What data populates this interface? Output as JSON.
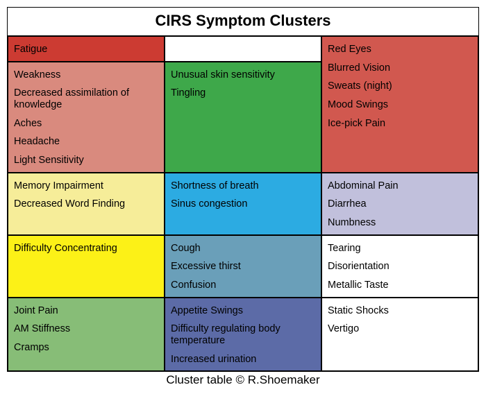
{
  "title": "CIRS Symptom Clusters",
  "footer": "Cluster table © R.Shoemaker",
  "layout": {
    "columns": 3,
    "border_color": "#000000",
    "title_fontsize": 22,
    "cell_fontsize": 14.5,
    "footer_fontsize": 17
  },
  "cells": [
    {
      "id": "c-fatigue",
      "bg": "#cc3b32",
      "row": 1,
      "col": 1,
      "rowspan": 1,
      "symptoms": [
        "Fatigue"
      ]
    },
    {
      "id": "c-blank",
      "bg": "#ffffff",
      "row": 1,
      "col": 2,
      "rowspan": 1,
      "symptoms": []
    },
    {
      "id": "c-redEyes",
      "bg": "#d1584f",
      "row": 1,
      "col": 3,
      "rowspan": 2,
      "symptoms": [
        "Red Eyes",
        "Blurred Vision",
        "Sweats (night)",
        "Mood Swings",
        "Ice-pick Pain"
      ]
    },
    {
      "id": "c-weakness",
      "bg": "#d98a7e",
      "row": 2,
      "col": 1,
      "rowspan": 1,
      "symptoms": [
        "Weakness",
        "Decreased assimilation of knowledge",
        "Aches",
        "Headache",
        "Light Sensitivity"
      ]
    },
    {
      "id": "c-skin",
      "bg": "#3ea84a",
      "row": 2,
      "col": 2,
      "rowspan": 1,
      "symptoms": [
        "Unusual skin sensitivity",
        "Tingling"
      ]
    },
    {
      "id": "c-memory",
      "bg": "#f6ed99",
      "row": 3,
      "col": 1,
      "rowspan": 1,
      "symptoms": [
        "Memory Impairment",
        "Decreased Word Finding"
      ]
    },
    {
      "id": "c-breath",
      "bg": "#2cabe2",
      "row": 3,
      "col": 2,
      "rowspan": 1,
      "symptoms": [
        "Shortness of breath",
        "Sinus congestion"
      ]
    },
    {
      "id": "c-abdom",
      "bg": "#c1c0dc",
      "row": 3,
      "col": 3,
      "rowspan": 1,
      "symptoms": [
        "Abdominal Pain",
        "Diarrhea",
        "Numbness"
      ]
    },
    {
      "id": "c-concent",
      "bg": "#fcf117",
      "row": 4,
      "col": 1,
      "rowspan": 1,
      "symptoms": [
        "Difficulty Concentrating"
      ]
    },
    {
      "id": "c-cough",
      "bg": "#6a9fb9",
      "row": 4,
      "col": 2,
      "rowspan": 1,
      "symptoms": [
        "Cough",
        "Excessive thirst",
        "Confusion"
      ]
    },
    {
      "id": "c-tearing",
      "bg": "#ffffff",
      "row": 4,
      "col": 3,
      "rowspan": 1,
      "symptoms": [
        "Tearing",
        "Disorientation",
        "Metallic Taste"
      ]
    },
    {
      "id": "c-joint",
      "bg": "#87bd77",
      "row": 5,
      "col": 1,
      "rowspan": 1,
      "symptoms": [
        "Joint Pain",
        "AM Stiffness",
        "Cramps"
      ]
    },
    {
      "id": "c-appetite",
      "bg": "#5c6ba7",
      "row": 5,
      "col": 2,
      "rowspan": 1,
      "symptoms": [
        "Appetite Swings",
        "Difficulty regulating body temperature",
        "Increased urination"
      ]
    },
    {
      "id": "c-shocks",
      "bg": "#ffffff",
      "row": 5,
      "col": 3,
      "rowspan": 1,
      "symptoms": [
        "Static Shocks",
        "Vertigo"
      ]
    }
  ]
}
